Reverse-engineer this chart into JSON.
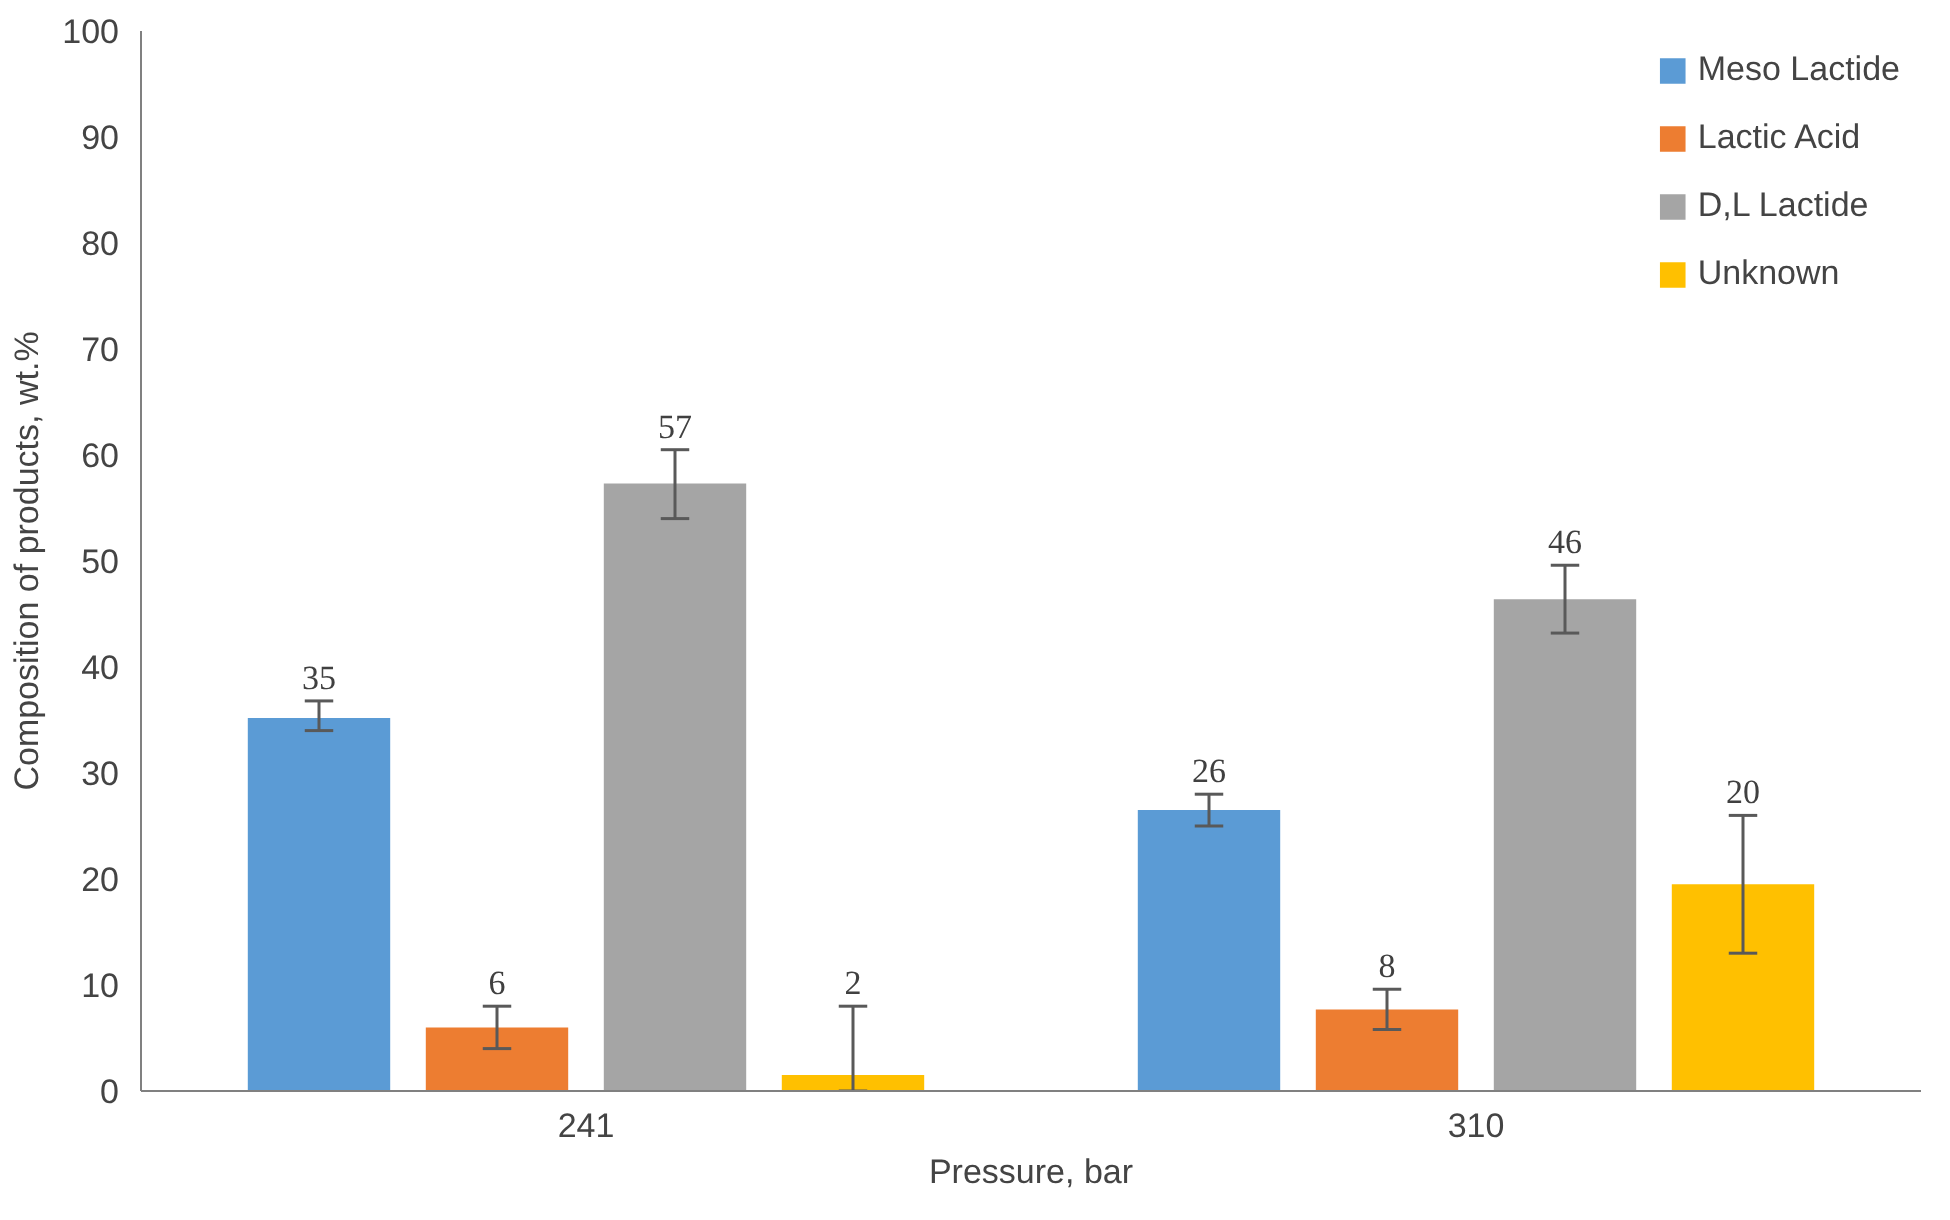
{
  "chart_data": {
    "type": "bar",
    "xlabel": "Pressure, bar",
    "ylabel": "Composition of products, wt.%",
    "categories": [
      "241",
      "310"
    ],
    "ylim": [
      0,
      100
    ],
    "yticks": [
      0,
      10,
      20,
      30,
      40,
      50,
      60,
      70,
      80,
      90,
      100
    ],
    "grid": false,
    "legend": "top right",
    "series": [
      {
        "name": "Meso Lactide",
        "color": "#5b9bd5",
        "values": [
          35.2,
          26.5
        ],
        "errors": [
          [
            34,
            36.8
          ],
          [
            25,
            28
          ]
        ],
        "value_labels": [
          "35",
          "26"
        ]
      },
      {
        "name": "Lactic Acid",
        "color": "#ed7d31",
        "values": [
          6.0,
          7.7
        ],
        "errors": [
          [
            4,
            8
          ],
          [
            5.8,
            9.6
          ]
        ],
        "value_labels": [
          "6",
          "8"
        ]
      },
      {
        "name": "D,L Lactide",
        "color": "#a5a5a5",
        "values": [
          57.3,
          46.4
        ],
        "errors": [
          [
            54,
            60.5
          ],
          [
            43.2,
            49.6
          ]
        ],
        "value_labels": [
          "57",
          "46"
        ]
      },
      {
        "name": "Unknown",
        "color": "#ffc000",
        "values": [
          1.5,
          19.5
        ],
        "errors": [
          [
            0,
            8
          ],
          [
            13,
            26
          ]
        ],
        "value_labels": [
          "2",
          "20"
        ]
      }
    ]
  }
}
